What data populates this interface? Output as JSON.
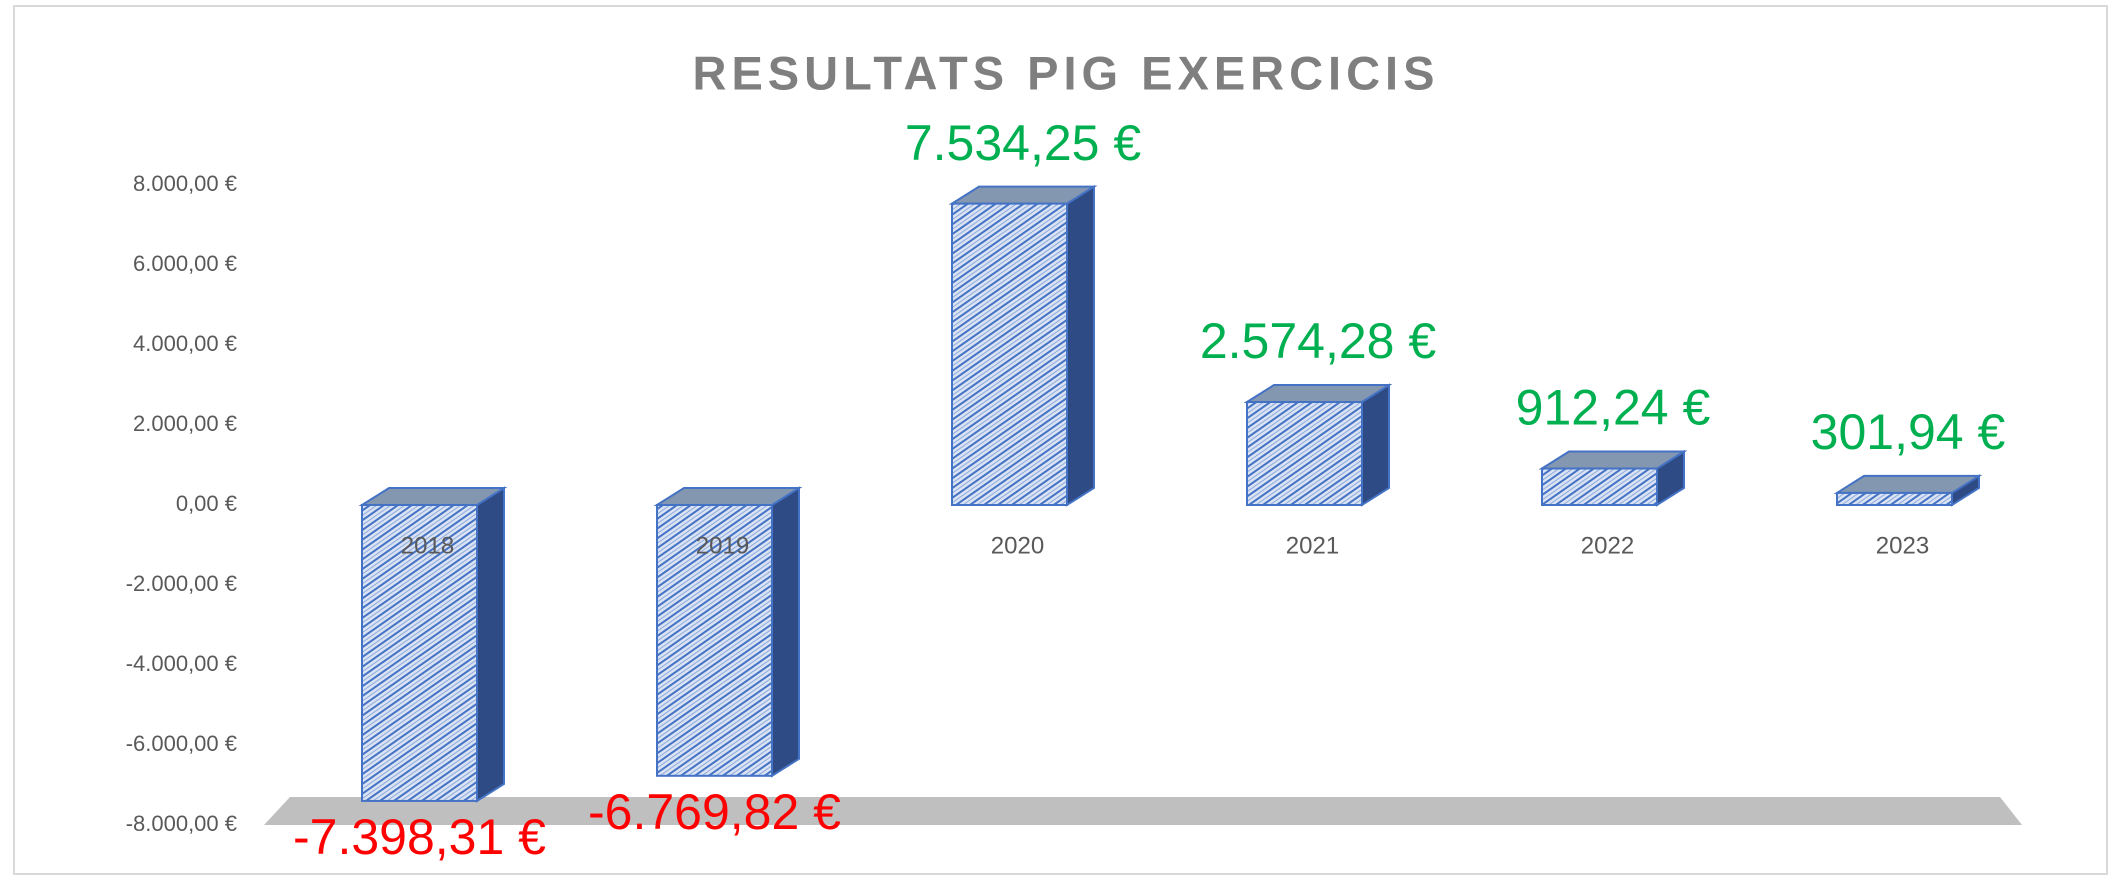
{
  "chart_data": {
    "type": "bar3d",
    "title": "RESULTATS PIG EXERCICIS",
    "categories": [
      "2018",
      "2019",
      "2020",
      "2021",
      "2022",
      "2023"
    ],
    "values": [
      -7398.31,
      -6769.82,
      7534.25,
      2574.28,
      912.24,
      301.94
    ],
    "value_labels": [
      "-7.398,31 €",
      "-6.769,82 €",
      "7.534,25 €",
      "2.574,28 €",
      "912,24 €",
      "301,94 €"
    ],
    "color": "#4472c4",
    "positive_label_color": "#00b050",
    "negative_label_color": "#ff0000",
    "ylim": [
      -8000,
      8000
    ],
    "yticks": [
      {
        "value": 8000,
        "label": "8.000,00 €"
      },
      {
        "value": 6000,
        "label": "6.000,00 €"
      },
      {
        "value": 4000,
        "label": "4.000,00 €"
      },
      {
        "value": 2000,
        "label": "2.000,00 €"
      },
      {
        "value": 0,
        "label": "0,00 €"
      },
      {
        "value": -2000,
        "label": "-2.000,00 €"
      },
      {
        "value": -4000,
        "label": "-4.000,00 €"
      },
      {
        "value": -6000,
        "label": "-6.000,00 €"
      },
      {
        "value": -8000,
        "label": "-8.000,00 €"
      }
    ],
    "grid": false
  }
}
